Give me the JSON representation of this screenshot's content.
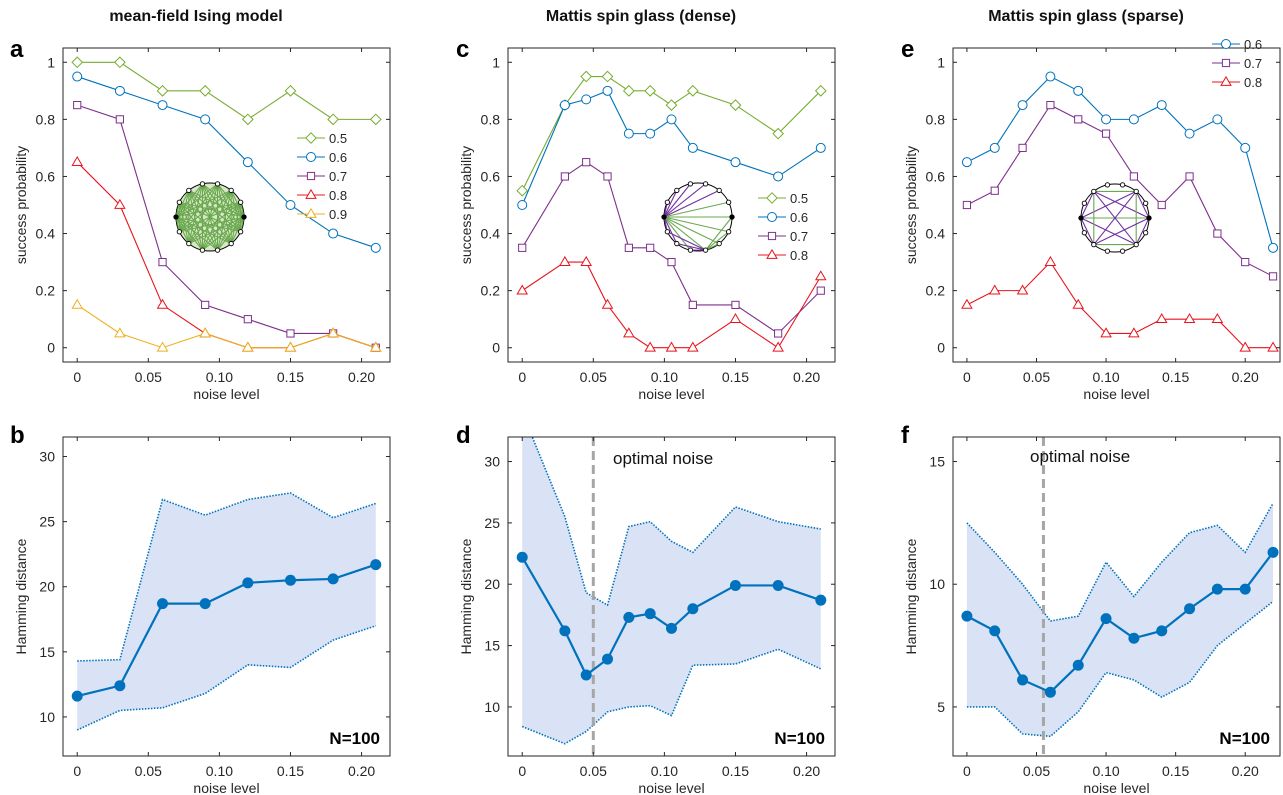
{
  "columns": [
    {
      "title": "mean-field Ising model"
    },
    {
      "title": "Mattis spin glass (dense)"
    },
    {
      "title": "Mattis spin glass (sparse)"
    }
  ],
  "colors": {
    "s0.5": "#77ac30",
    "s0.6": "#0072bd",
    "s0.7": "#7e2f8e",
    "s0.8": "#e8141c",
    "s0.9": "#edb120",
    "band": "#d9e3f5",
    "mean": "#0072bd",
    "optimal": "#a6a6a6",
    "axis": "#262626"
  },
  "chart_data": [
    {
      "id": "a",
      "type": "line",
      "xlabel": "noise level",
      "ylabel": "success probability",
      "xlim": [
        -0.01,
        0.22
      ],
      "ylim": [
        -0.05,
        1.05
      ],
      "xticks": [
        0,
        0.05,
        0.1,
        0.15,
        0.2
      ],
      "xticklabels": [
        "0",
        "0.05",
        "0.10",
        "0.15",
        "0.20"
      ],
      "yticks": [
        0,
        0.2,
        0.4,
        0.6,
        0.8,
        1
      ],
      "yticklabels": [
        "0",
        "0.2",
        "0.4",
        "0.6",
        "0.8",
        "1"
      ],
      "legend": "right",
      "inset": "mean-field-graph-icon",
      "x": [
        0,
        0.03,
        0.06,
        0.09,
        0.12,
        0.15,
        0.18,
        0.21
      ],
      "series": [
        {
          "name": "0.5",
          "color": "#77ac30",
          "marker": "diamond",
          "values": [
            1,
            1,
            0.9,
            0.9,
            0.8,
            0.9,
            0.8,
            0.8
          ]
        },
        {
          "name": "0.6",
          "color": "#0072bd",
          "marker": "circle",
          "values": [
            0.95,
            0.9,
            0.85,
            0.8,
            0.65,
            0.5,
            0.4,
            0.35
          ]
        },
        {
          "name": "0.7",
          "color": "#7e2f8e",
          "marker": "square",
          "values": [
            0.85,
            0.8,
            0.3,
            0.15,
            0.1,
            0.05,
            0.05,
            0
          ]
        },
        {
          "name": "0.8",
          "color": "#e8141c",
          "marker": "triangle",
          "values": [
            0.65,
            0.5,
            0.15,
            0.05,
            0,
            0,
            0.05,
            0
          ]
        },
        {
          "name": "0.9",
          "color": "#edb120",
          "marker": "triangle",
          "values": [
            0.15,
            0.05,
            0,
            0.05,
            0,
            0,
            0.05,
            0
          ]
        }
      ]
    },
    {
      "id": "b",
      "type": "area",
      "xlabel": "noise level",
      "ylabel": "Hamming distance",
      "xlim": [
        -0.01,
        0.22
      ],
      "ylim": [
        7,
        31.5
      ],
      "xticks": [
        0,
        0.05,
        0.1,
        0.15,
        0.2
      ],
      "xticklabels": [
        "0",
        "0.05",
        "0.10",
        "0.15",
        "0.20"
      ],
      "yticks": [
        10,
        15,
        20,
        25,
        30
      ],
      "yticklabels": [
        "10",
        "15",
        "20",
        "25",
        "30"
      ],
      "annotation": "N=100",
      "x": [
        0,
        0.03,
        0.06,
        0.09,
        0.12,
        0.15,
        0.18,
        0.21
      ],
      "mean": [
        11.6,
        12.4,
        18.7,
        18.7,
        20.3,
        20.5,
        20.6,
        21.7
      ],
      "upper": [
        14.3,
        14.4,
        26.7,
        25.5,
        26.7,
        27.2,
        25.3,
        26.4
      ],
      "lower": [
        9.0,
        10.5,
        10.7,
        11.8,
        14.0,
        13.8,
        15.9,
        17.0
      ]
    },
    {
      "id": "c",
      "type": "line",
      "xlabel": "noise level",
      "ylabel": "success probability",
      "xlim": [
        -0.01,
        0.22
      ],
      "ylim": [
        -0.05,
        1.05
      ],
      "xticks": [
        0,
        0.05,
        0.1,
        0.15,
        0.2
      ],
      "xticklabels": [
        "0",
        "0.05",
        "0.10",
        "0.15",
        "0.20"
      ],
      "yticks": [
        0,
        0.2,
        0.4,
        0.6,
        0.8,
        1
      ],
      "yticklabels": [
        "0",
        "0.2",
        "0.4",
        "0.6",
        "0.8",
        "1"
      ],
      "legend": "right",
      "inset": "dense-spin-glass-graph-icon",
      "x": [
        0,
        0.03,
        0.045,
        0.06,
        0.075,
        0.09,
        0.105,
        0.12,
        0.15,
        0.18,
        0.21
      ],
      "series": [
        {
          "name": "0.5",
          "color": "#77ac30",
          "marker": "diamond",
          "values": [
            0.55,
            0.85,
            0.95,
            0.95,
            0.9,
            0.9,
            0.85,
            0.9,
            0.85,
            0.75,
            0.9
          ]
        },
        {
          "name": "0.6",
          "color": "#0072bd",
          "marker": "circle",
          "values": [
            0.5,
            0.85,
            0.87,
            0.9,
            0.75,
            0.75,
            0.8,
            0.7,
            0.65,
            0.6,
            0.7
          ]
        },
        {
          "name": "0.7",
          "color": "#7e2f8e",
          "marker": "square",
          "values": [
            0.35,
            0.6,
            0.65,
            0.6,
            0.35,
            0.35,
            0.3,
            0.15,
            0.15,
            0.05,
            0.2
          ]
        },
        {
          "name": "0.8",
          "color": "#e8141c",
          "marker": "triangle",
          "values": [
            0.2,
            0.3,
            0.3,
            0.15,
            0.05,
            0,
            0,
            0,
            0.1,
            0,
            0.25
          ]
        }
      ]
    },
    {
      "id": "d",
      "type": "area",
      "xlabel": "noise level",
      "ylabel": "Hamming distance",
      "xlim": [
        -0.01,
        0.22
      ],
      "ylim": [
        6,
        32
      ],
      "xticks": [
        0,
        0.05,
        0.1,
        0.15,
        0.2
      ],
      "xticklabels": [
        "0",
        "0.05",
        "0.10",
        "0.15",
        "0.20"
      ],
      "yticks": [
        10,
        15,
        20,
        25,
        30
      ],
      "yticklabels": [
        "10",
        "15",
        "20",
        "25",
        "30"
      ],
      "annotation": "N=100",
      "vline": 0.05,
      "vline_label": "optimal noise",
      "x": [
        0,
        0.03,
        0.045,
        0.06,
        0.075,
        0.09,
        0.105,
        0.12,
        0.15,
        0.18,
        0.21
      ],
      "mean": [
        22.2,
        16.2,
        12.6,
        13.9,
        17.3,
        17.6,
        16.4,
        18.0,
        19.9,
        19.9,
        18.7
      ],
      "upper": [
        34,
        25.5,
        19.3,
        18.3,
        24.7,
        25.1,
        23.5,
        22.6,
        26.3,
        25.1,
        24.5
      ],
      "lower": [
        8.4,
        7.0,
        8.0,
        9.6,
        10.0,
        10.1,
        9.3,
        13.4,
        13.5,
        14.7,
        13.1
      ]
    },
    {
      "id": "e",
      "type": "line",
      "xlabel": "noise level",
      "ylabel": "success probability",
      "xlim": [
        -0.01,
        0.225
      ],
      "ylim": [
        -0.05,
        1.05
      ],
      "xticks": [
        0,
        0.05,
        0.1,
        0.15,
        0.2
      ],
      "xticklabels": [
        "0",
        "0.05",
        "0.10",
        "0.15",
        "0.20"
      ],
      "yticks": [
        0,
        0.2,
        0.4,
        0.6,
        0.8,
        1
      ],
      "yticklabels": [
        "0",
        "0.2",
        "0.4",
        "0.6",
        "0.8",
        "1"
      ],
      "legend": "top-right",
      "inset": "sparse-spin-glass-graph-icon",
      "x": [
        0,
        0.02,
        0.04,
        0.06,
        0.08,
        0.1,
        0.12,
        0.14,
        0.16,
        0.18,
        0.2,
        0.22
      ],
      "series": [
        {
          "name": "0.6",
          "color": "#0072bd",
          "marker": "circle",
          "values": [
            0.65,
            0.7,
            0.85,
            0.95,
            0.9,
            0.8,
            0.8,
            0.85,
            0.75,
            0.8,
            0.7,
            0.35
          ]
        },
        {
          "name": "0.7",
          "color": "#7e2f8e",
          "marker": "square",
          "values": [
            0.5,
            0.55,
            0.7,
            0.85,
            0.8,
            0.75,
            0.6,
            0.5,
            0.6,
            0.4,
            0.3,
            0.25
          ]
        },
        {
          "name": "0.8",
          "color": "#e8141c",
          "marker": "triangle",
          "values": [
            0.15,
            0.2,
            0.2,
            0.3,
            0.15,
            0.05,
            0.05,
            0.1,
            0.1,
            0.1,
            0,
            0
          ]
        }
      ]
    },
    {
      "id": "f",
      "type": "area",
      "xlabel": "noise level",
      "ylabel": "Hamming distance",
      "xlim": [
        -0.01,
        0.225
      ],
      "ylim": [
        3,
        16
      ],
      "xticks": [
        0,
        0.05,
        0.1,
        0.15,
        0.2
      ],
      "xticklabels": [
        "0",
        "0.05",
        "0.10",
        "0.15",
        "0.20"
      ],
      "yticks": [
        5,
        10,
        15
      ],
      "yticklabels": [
        "5",
        "10",
        "15"
      ],
      "annotation": "N=100",
      "vline": 0.055,
      "vline_label": "optimal noise",
      "x": [
        0,
        0.02,
        0.04,
        0.06,
        0.08,
        0.1,
        0.12,
        0.14,
        0.16,
        0.18,
        0.2,
        0.22
      ],
      "mean": [
        8.7,
        8.1,
        6.1,
        5.6,
        6.7,
        8.6,
        7.8,
        8.1,
        9.0,
        9.8,
        9.8,
        11.3
      ],
      "upper": [
        12.5,
        11.3,
        10.0,
        8.5,
        8.7,
        10.9,
        9.5,
        10.9,
        12.1,
        12.4,
        11.3,
        13.3
      ],
      "lower": [
        5.0,
        5.0,
        3.9,
        3.8,
        4.8,
        6.4,
        6.1,
        5.4,
        6.0,
        7.5,
        8.4,
        9.3
      ]
    }
  ]
}
